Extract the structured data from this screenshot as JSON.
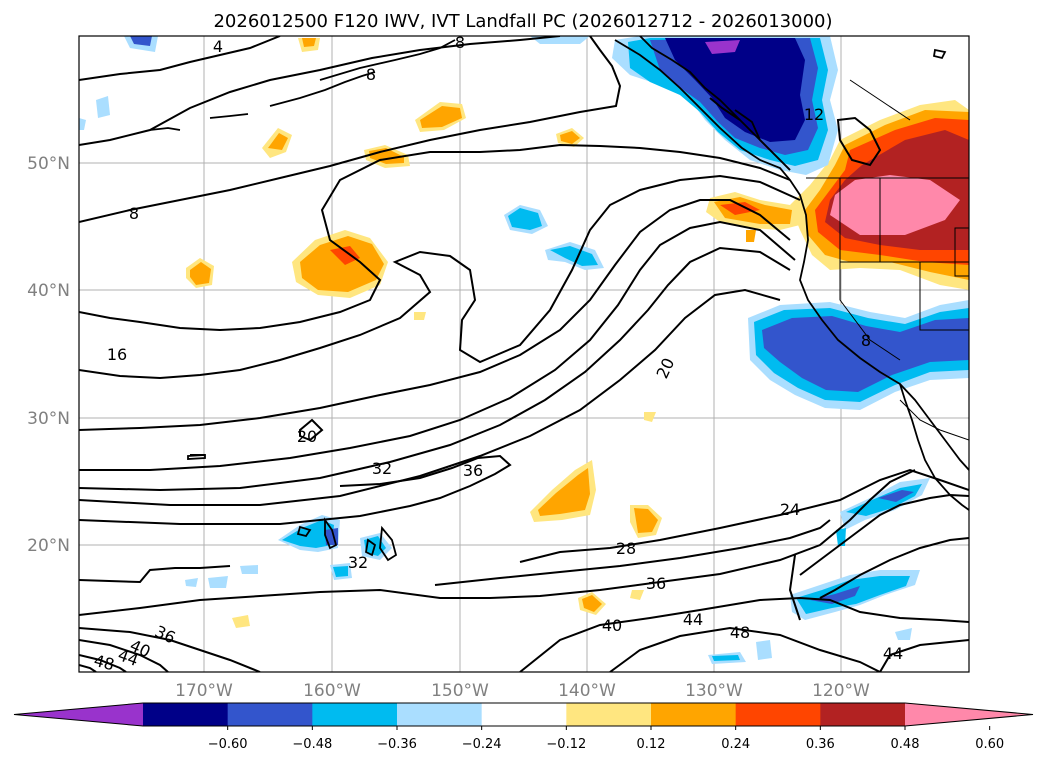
{
  "title": "2026012500 F120 IWV, IVT Landfall PC (2026012712 - 2026013000)",
  "lat_labels": [
    "50°N",
    "40°N",
    "30°N",
    "20°N"
  ],
  "lon_labels": [
    "170°W",
    "160°W",
    "150°W",
    "140°W",
    "130°W",
    "120°W"
  ],
  "contour_labels": [
    "8",
    "8",
    "4",
    "8",
    "12",
    "8",
    "16",
    "20",
    "20",
    "24",
    "28",
    "32",
    "32",
    "36",
    "36",
    "36",
    "40",
    "40",
    "44",
    "44",
    "44",
    "48",
    "48"
  ],
  "colorbar": {
    "tick_labels": [
      "−0.60",
      "−0.48",
      "−0.36",
      "−0.24",
      "−0.12",
      "0.12",
      "0.24",
      "0.36",
      "0.48",
      "0.60"
    ],
    "colors": [
      "#9933cc",
      "#000088",
      "#3355cc",
      "#00bbf0",
      "#aadeff",
      "#ffffff",
      "#ffe680",
      "#ffa500",
      "#ff4500",
      "#b22222",
      "#ff88aa"
    ]
  }
}
